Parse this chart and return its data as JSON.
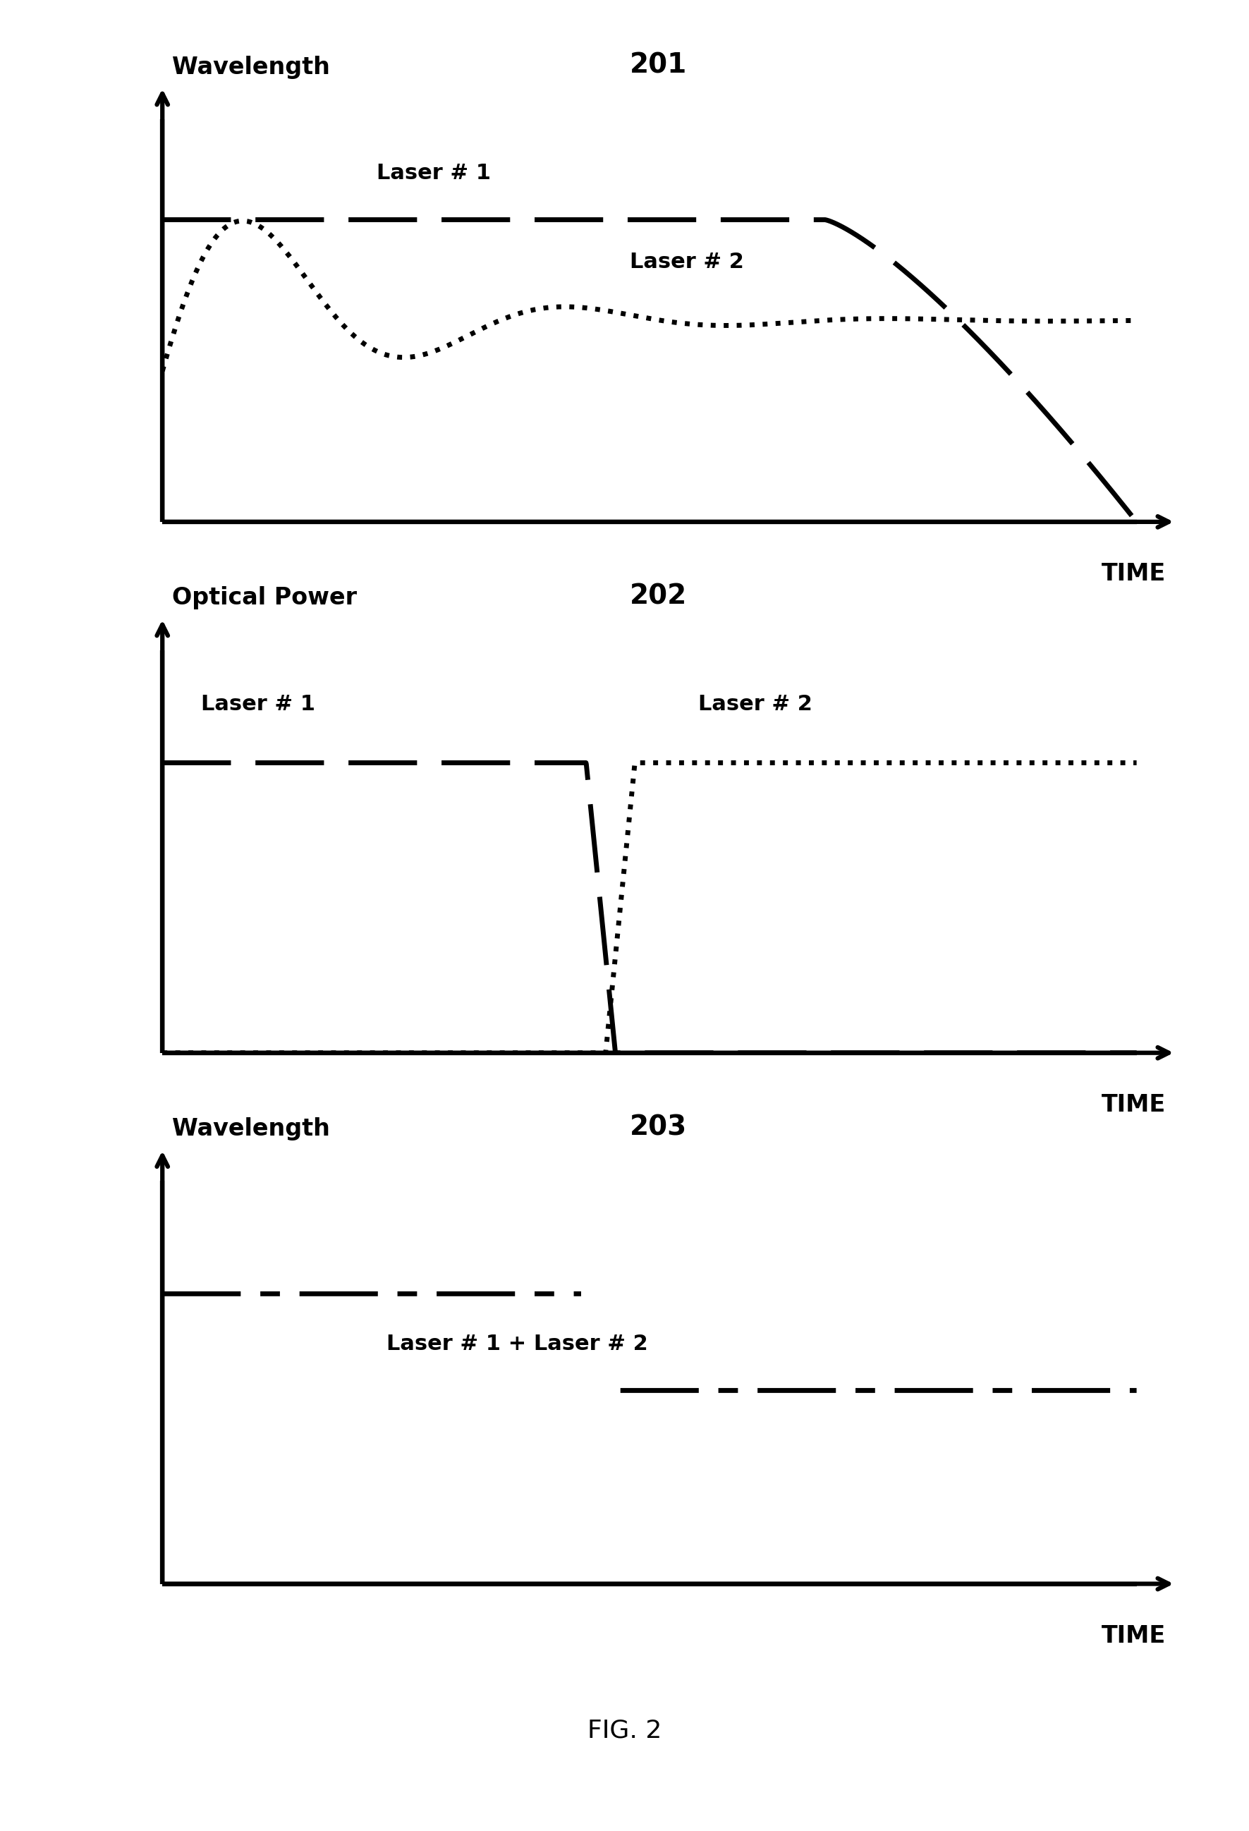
{
  "fig_width": 17.71,
  "fig_height": 25.96,
  "background_color": "#ffffff",
  "panel_labels": [
    "201",
    "202",
    "203"
  ],
  "y_axis_labels": [
    "Wavelength",
    "Optical Power",
    "Wavelength"
  ],
  "x_axis_label": "TIME",
  "fig_caption": "FIG. 2",
  "line_color": "#000000",
  "lw": 5.0,
  "lw_axis": 4.5,
  "label_fontsize": 24,
  "num_fontsize": 28,
  "text_fontsize": 22
}
